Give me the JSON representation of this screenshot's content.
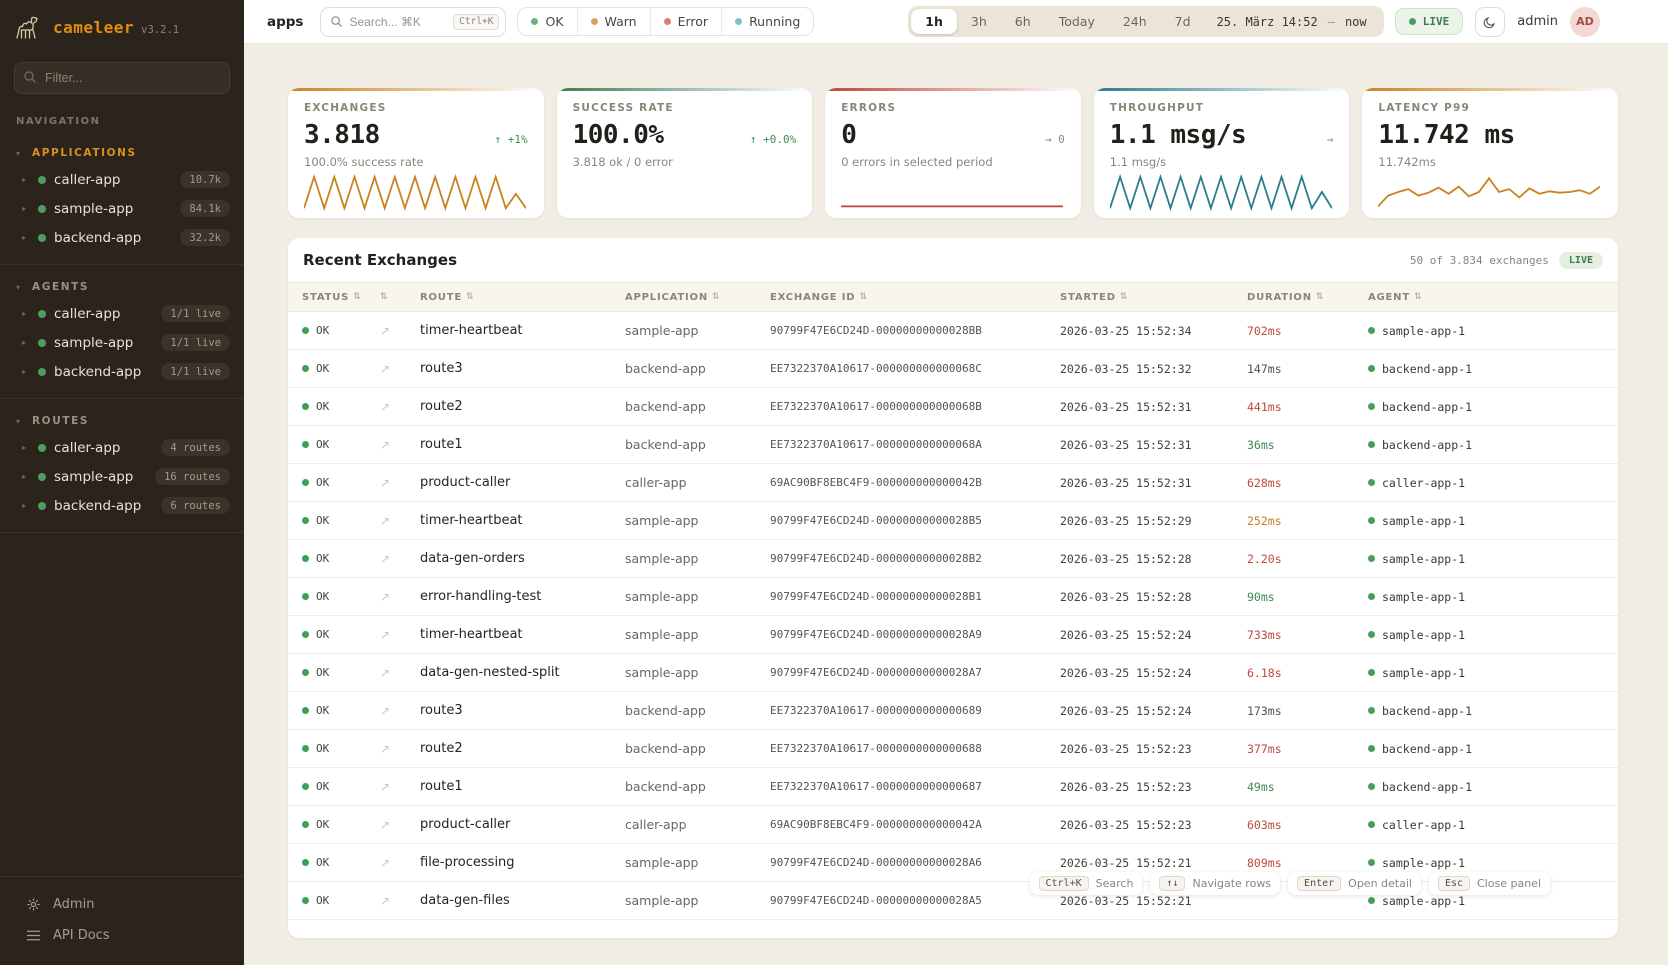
{
  "colors": {
    "accent_orange": "#d9901c",
    "ok_green": "#3f9e57",
    "error_red": "#c2453a",
    "teal": "#2a7d8c",
    "sidebar_bg": "#2a241d",
    "main_bg": "#f1ede5"
  },
  "icons": {
    "sort": "⇅",
    "expand": "↗",
    "section_caret": "▾",
    "item_caret": "▸"
  },
  "sidebar": {
    "brand": "cameleer",
    "version": "v3.2.1",
    "filter_placeholder": "Filter...",
    "nav_label": "NAVIGATION",
    "sections": [
      {
        "label": "APPLICATIONS",
        "active": true,
        "items": [
          {
            "name": "caller-app",
            "badge": "10.7k"
          },
          {
            "name": "sample-app",
            "badge": "84.1k"
          },
          {
            "name": "backend-app",
            "badge": "32.2k"
          }
        ]
      },
      {
        "label": "AGENTS",
        "active": false,
        "items": [
          {
            "name": "caller-app",
            "badge": "1/1 live"
          },
          {
            "name": "sample-app",
            "badge": "1/1 live"
          },
          {
            "name": "backend-app",
            "badge": "1/1 live"
          }
        ]
      },
      {
        "label": "ROUTES",
        "active": false,
        "items": [
          {
            "name": "caller-app",
            "badge": "4 routes"
          },
          {
            "name": "sample-app",
            "badge": "16 routes"
          },
          {
            "name": "backend-app",
            "badge": "6 routes"
          }
        ]
      }
    ],
    "footer": [
      {
        "label": "Admin",
        "icon": "gear"
      },
      {
        "label": "API Docs",
        "icon": "list"
      }
    ]
  },
  "topbar": {
    "context": "apps",
    "search_placeholder": "Search... ⌘K",
    "search_kbd": "Ctrl+K",
    "status_filters": [
      {
        "label": "OK",
        "color": "#6fae7d"
      },
      {
        "label": "Warn",
        "color": "#d4a45c"
      },
      {
        "label": "Error",
        "color": "#d97f72"
      },
      {
        "label": "Running",
        "color": "#7ec0cb"
      }
    ],
    "time_ranges": [
      "1h",
      "3h",
      "6h",
      "Today",
      "24h",
      "7d"
    ],
    "active_range": "1h",
    "range_from": "25. März 14:52",
    "range_sep": "—",
    "range_to": "now",
    "live_label": "LIVE",
    "user": "admin",
    "avatar": "AD"
  },
  "cards": [
    {
      "label": "EXCHANGES",
      "value": "3.818",
      "delta": "↑ +1%",
      "delta_kind": "up",
      "subtitle": "100.0% success rate",
      "accent": "#c9831e",
      "sparkline": [
        0.95,
        0.08,
        0.95,
        0.08,
        0.95,
        0.08,
        0.95,
        0.08,
        0.95,
        0.08,
        0.95,
        0.08,
        0.95,
        0.08,
        0.95,
        0.08,
        0.95,
        0.08,
        0.95,
        0.08,
        0.95,
        0.55,
        0.95
      ]
    },
    {
      "label": "SUCCESS RATE",
      "value": "100.0%",
      "delta": "↑ +0.0%",
      "delta_kind": "up",
      "subtitle": "3.818 ok / 0 error",
      "accent": "#3e7d52",
      "sparkline": null
    },
    {
      "label": "ERRORS",
      "value": "0",
      "delta": "→ 0",
      "delta_kind": "flat",
      "subtitle": "0 errors in selected period",
      "accent": "#c2453a",
      "sparkline": [
        0.9,
        0.9
      ]
    },
    {
      "label": "THROUGHPUT",
      "value": "1.1 msg/s",
      "delta": "→",
      "delta_kind": "flat",
      "subtitle": "1.1 msg/s",
      "accent": "#2a7d8c",
      "sparkline": [
        0.95,
        0.08,
        0.95,
        0.08,
        0.95,
        0.08,
        0.95,
        0.08,
        0.95,
        0.08,
        0.95,
        0.08,
        0.95,
        0.08,
        0.95,
        0.08,
        0.95,
        0.08,
        0.95,
        0.08,
        0.95,
        0.5,
        0.95
      ]
    },
    {
      "label": "LATENCY P99",
      "value": "11.742 ms",
      "delta": "",
      "delta_kind": "flat",
      "subtitle": "11.742ms",
      "accent": "#c9831e",
      "sparkline": [
        0.9,
        0.6,
        0.5,
        0.42,
        0.6,
        0.52,
        0.38,
        0.55,
        0.35,
        0.62,
        0.5,
        0.12,
        0.5,
        0.42,
        0.65,
        0.4,
        0.55,
        0.48,
        0.52,
        0.5,
        0.45,
        0.55,
        0.35
      ]
    }
  ],
  "table": {
    "title": "Recent Exchanges",
    "count": "50 of 3.834 exchanges",
    "live": "LIVE",
    "columns": [
      "STATUS",
      "",
      "ROUTE",
      "APPLICATION",
      "EXCHANGE ID",
      "STARTED",
      "DURATION",
      "AGENT"
    ],
    "rows": [
      {
        "status": "OK",
        "route": "timer-heartbeat",
        "app": "sample-app",
        "id": "90799F47E6CD24D-00000000000028BB",
        "started": "2026-03-25 15:52:34",
        "duration": "702ms",
        "dur_class": "slow",
        "agent": "sample-app-1"
      },
      {
        "status": "OK",
        "route": "route3",
        "app": "backend-app",
        "id": "EE7322370A10617-000000000000068C",
        "started": "2026-03-25 15:52:32",
        "duration": "147ms",
        "dur_class": "mid",
        "agent": "backend-app-1"
      },
      {
        "status": "OK",
        "route": "route2",
        "app": "backend-app",
        "id": "EE7322370A10617-000000000000068B",
        "started": "2026-03-25 15:52:31",
        "duration": "441ms",
        "dur_class": "slow",
        "agent": "backend-app-1"
      },
      {
        "status": "OK",
        "route": "route1",
        "app": "backend-app",
        "id": "EE7322370A10617-000000000000068A",
        "started": "2026-03-25 15:52:31",
        "duration": "36ms",
        "dur_class": "fast",
        "agent": "backend-app-1"
      },
      {
        "status": "OK",
        "route": "product-caller",
        "app": "caller-app",
        "id": "69AC90BF8EBC4F9-000000000000042B",
        "started": "2026-03-25 15:52:31",
        "duration": "628ms",
        "dur_class": "slow",
        "agent": "caller-app-1"
      },
      {
        "status": "OK",
        "route": "timer-heartbeat",
        "app": "sample-app",
        "id": "90799F47E6CD24D-00000000000028B5",
        "started": "2026-03-25 15:52:29",
        "duration": "252ms",
        "dur_class": "warn",
        "agent": "sample-app-1"
      },
      {
        "status": "OK",
        "route": "data-gen-orders",
        "app": "sample-app",
        "id": "90799F47E6CD24D-00000000000028B2",
        "started": "2026-03-25 15:52:28",
        "duration": "2.20s",
        "dur_class": "slow",
        "agent": "sample-app-1"
      },
      {
        "status": "OK",
        "route": "error-handling-test",
        "app": "sample-app",
        "id": "90799F47E6CD24D-00000000000028B1",
        "started": "2026-03-25 15:52:28",
        "duration": "90ms",
        "dur_class": "fast",
        "agent": "sample-app-1"
      },
      {
        "status": "OK",
        "route": "timer-heartbeat",
        "app": "sample-app",
        "id": "90799F47E6CD24D-00000000000028A9",
        "started": "2026-03-25 15:52:24",
        "duration": "733ms",
        "dur_class": "slow",
        "agent": "sample-app-1"
      },
      {
        "status": "OK",
        "route": "data-gen-nested-split",
        "app": "sample-app",
        "id": "90799F47E6CD24D-00000000000028A7",
        "started": "2026-03-25 15:52:24",
        "duration": "6.18s",
        "dur_class": "slow",
        "agent": "sample-app-1"
      },
      {
        "status": "OK",
        "route": "route3",
        "app": "backend-app",
        "id": "EE7322370A10617-0000000000000689",
        "started": "2026-03-25 15:52:24",
        "duration": "173ms",
        "dur_class": "mid",
        "agent": "backend-app-1"
      },
      {
        "status": "OK",
        "route": "route2",
        "app": "backend-app",
        "id": "EE7322370A10617-0000000000000688",
        "started": "2026-03-25 15:52:23",
        "duration": "377ms",
        "dur_class": "slow",
        "agent": "backend-app-1"
      },
      {
        "status": "OK",
        "route": "route1",
        "app": "backend-app",
        "id": "EE7322370A10617-0000000000000687",
        "started": "2026-03-25 15:52:23",
        "duration": "49ms",
        "dur_class": "fast",
        "agent": "backend-app-1"
      },
      {
        "status": "OK",
        "route": "product-caller",
        "app": "caller-app",
        "id": "69AC90BF8EBC4F9-000000000000042A",
        "started": "2026-03-25 15:52:23",
        "duration": "603ms",
        "dur_class": "slow",
        "agent": "caller-app-1"
      },
      {
        "status": "OK",
        "route": "file-processing",
        "app": "sample-app",
        "id": "90799F47E6CD24D-00000000000028A6",
        "started": "2026-03-25 15:52:21",
        "duration": "809ms",
        "dur_class": "slow",
        "agent": "sample-app-1"
      },
      {
        "status": "OK",
        "route": "data-gen-files",
        "app": "sample-app",
        "id": "90799F47E6CD24D-00000000000028A5",
        "started": "2026-03-25 15:52:21",
        "duration": "",
        "dur_class": "mid",
        "agent": "sample-app-1"
      }
    ]
  },
  "shortcuts": [
    {
      "key": "Ctrl+K",
      "label": "Search"
    },
    {
      "key": "↑↓",
      "label": "Navigate rows"
    },
    {
      "key": "Enter",
      "label": "Open detail"
    },
    {
      "key": "Esc",
      "label": "Close panel"
    }
  ]
}
